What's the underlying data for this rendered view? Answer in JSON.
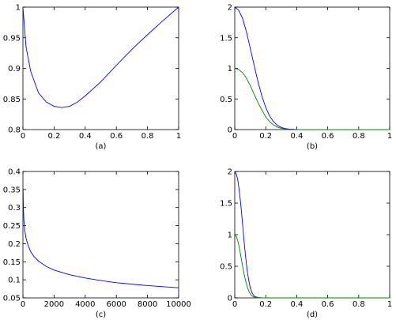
{
  "chart_data": [
    {
      "type": "line",
      "caption": "(a)",
      "xlim": [
        0,
        1
      ],
      "ylim": [
        0.8,
        1
      ],
      "xticks": [
        "0",
        "0.2",
        "0.4",
        "0.6",
        "0.8",
        "1"
      ],
      "yticks": [
        "0.8",
        "0.85",
        "0.9",
        "0.95",
        "1"
      ],
      "series": [
        {
          "color": "#0000ff",
          "x": [
            0,
            0.02,
            0.05,
            0.1,
            0.15,
            0.2,
            0.25,
            0.3,
            0.35,
            0.4,
            0.5,
            0.6,
            0.7,
            0.8,
            0.9,
            1.0
          ],
          "y": [
            1.0,
            0.935,
            0.895,
            0.86,
            0.845,
            0.838,
            0.836,
            0.838,
            0.845,
            0.855,
            0.878,
            0.905,
            0.931,
            0.955,
            0.978,
            1.0
          ]
        }
      ]
    },
    {
      "type": "line",
      "caption": "(b)",
      "xlim": [
        0,
        1
      ],
      "ylim": [
        0,
        2
      ],
      "xticks": [
        "0",
        "0.2",
        "0.4",
        "0.6",
        "0.8",
        "1"
      ],
      "yticks": [
        "0",
        "0.5",
        "1",
        "1.5",
        "2"
      ],
      "series": [
        {
          "color": "#0000ff",
          "x": [
            0,
            0.025,
            0.05,
            0.075,
            0.1,
            0.125,
            0.15,
            0.175,
            0.2,
            0.225,
            0.25,
            0.275,
            0.3,
            0.325,
            0.35,
            0.4,
            0.45,
            1.0
          ],
          "y": [
            2.0,
            1.95,
            1.82,
            1.6,
            1.33,
            1.05,
            0.78,
            0.55,
            0.36,
            0.22,
            0.13,
            0.07,
            0.035,
            0.017,
            0.008,
            0.001,
            0,
            0
          ]
        },
        {
          "color": "#008000",
          "x": [
            0,
            0.025,
            0.05,
            0.075,
            0.1,
            0.125,
            0.15,
            0.175,
            0.2,
            0.225,
            0.25,
            0.275,
            0.3,
            0.325,
            0.35,
            0.4,
            0.45,
            1.0
          ],
          "y": [
            1.0,
            0.98,
            0.93,
            0.84,
            0.72,
            0.58,
            0.44,
            0.32,
            0.21,
            0.13,
            0.075,
            0.04,
            0.02,
            0.01,
            0.005,
            0.001,
            0,
            0
          ]
        }
      ]
    },
    {
      "type": "line",
      "caption": "(c)",
      "xlim": [
        0,
        10000
      ],
      "ylim": [
        0.05,
        0.4
      ],
      "xticks": [
        "0",
        "2000",
        "4000",
        "6000",
        "8000",
        "10000"
      ],
      "yticks": [
        "0.05",
        "0.1",
        "0.15",
        "0.2",
        "0.25",
        "0.3",
        "0.35",
        "0.4"
      ],
      "series": [
        {
          "color": "#0000ff",
          "x": [
            10,
            30,
            60,
            100,
            150,
            200,
            300,
            400,
            500,
            700,
            1000,
            1500,
            2000,
            3000,
            4000,
            5000,
            6000,
            7000,
            8000,
            9000,
            10000
          ],
          "y": [
            0.35,
            0.3,
            0.265,
            0.245,
            0.228,
            0.215,
            0.2,
            0.188,
            0.178,
            0.165,
            0.152,
            0.137,
            0.127,
            0.114,
            0.105,
            0.098,
            0.092,
            0.088,
            0.084,
            0.081,
            0.078
          ]
        }
      ]
    },
    {
      "type": "line",
      "caption": "(d)",
      "xlim": [
        0,
        1
      ],
      "ylim": [
        0,
        2
      ],
      "xticks": [
        "0",
        "0.2",
        "0.4",
        "0.6",
        "0.8",
        "1"
      ],
      "yticks": [
        "0",
        "0.5",
        "1",
        "1.5",
        "2"
      ],
      "series": [
        {
          "color": "#0000ff",
          "x": [
            0,
            0.01,
            0.02,
            0.03,
            0.04,
            0.05,
            0.06,
            0.07,
            0.08,
            0.09,
            0.1,
            0.11,
            0.12,
            0.13,
            0.15,
            0.18,
            0.2,
            1.0
          ],
          "y": [
            2.0,
            1.96,
            1.86,
            1.68,
            1.45,
            1.18,
            0.9,
            0.65,
            0.44,
            0.28,
            0.16,
            0.09,
            0.045,
            0.022,
            0.005,
            0.001,
            0,
            0
          ]
        },
        {
          "color": "#008000",
          "x": [
            0,
            0.01,
            0.02,
            0.03,
            0.04,
            0.05,
            0.06,
            0.07,
            0.08,
            0.09,
            0.1,
            0.11,
            0.12,
            0.13,
            0.15,
            0.18,
            0.2,
            1.0
          ],
          "y": [
            1.0,
            0.97,
            0.9,
            0.79,
            0.65,
            0.51,
            0.38,
            0.27,
            0.18,
            0.11,
            0.065,
            0.035,
            0.018,
            0.009,
            0.002,
            0,
            0,
            0
          ]
        }
      ]
    }
  ]
}
